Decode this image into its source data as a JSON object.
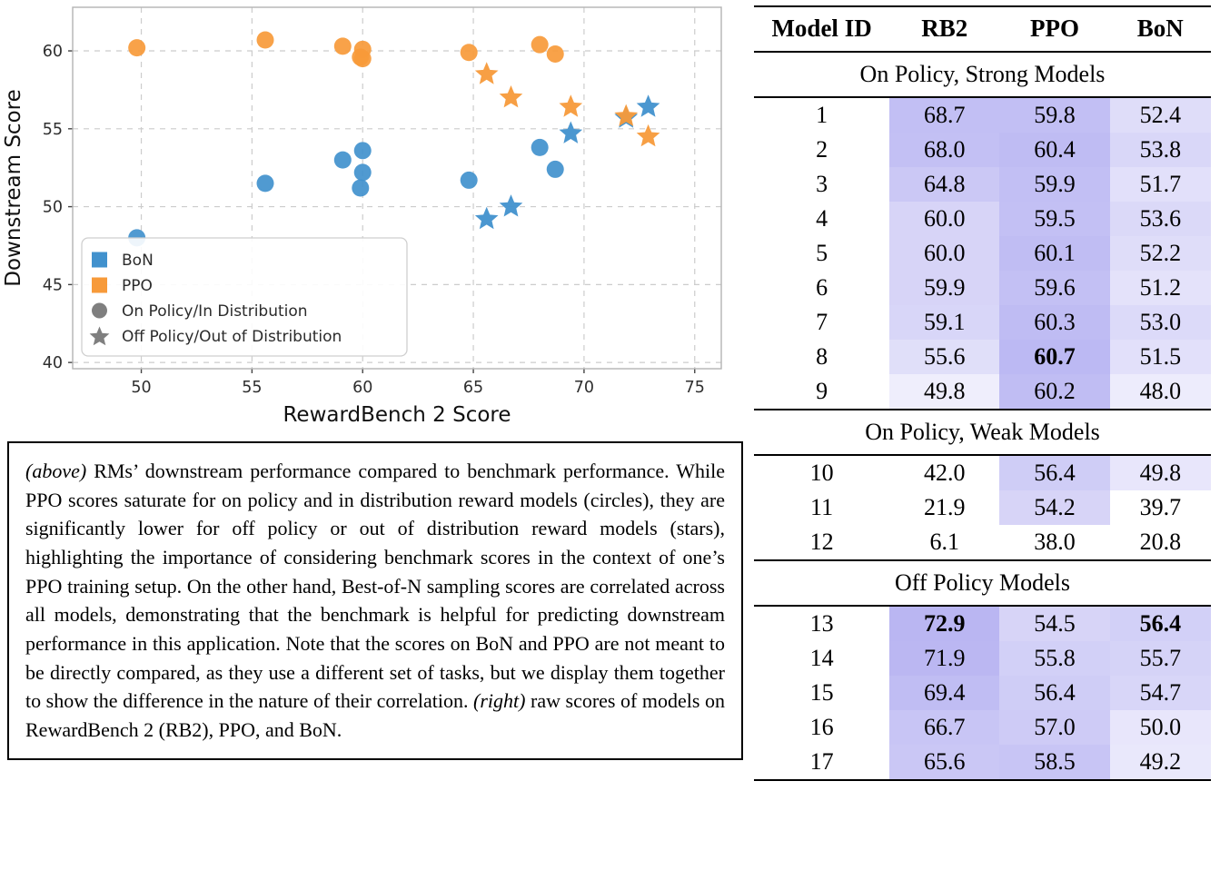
{
  "chart_data": {
    "type": "scatter",
    "title": "",
    "xlabel": "RewardBench 2 Score",
    "ylabel": "Downstream Score",
    "x_ticks": [
      50,
      55,
      60,
      65,
      70,
      75
    ],
    "y_ticks": [
      40,
      45,
      50,
      55,
      60
    ],
    "xlim": [
      46.9,
      76.2
    ],
    "ylim": [
      39.6,
      62.8
    ],
    "grid": "dashed",
    "legend_position": "lower left",
    "colors": {
      "bon": "#4191cd",
      "ppo": "#f79a3a",
      "gray": "#7f7f7f"
    },
    "legend": [
      {
        "label": "BoN",
        "marker": "square",
        "color_key": "bon"
      },
      {
        "label": "PPO",
        "marker": "square",
        "color_key": "ppo"
      },
      {
        "label": "On Policy/In Distribution",
        "marker": "circle",
        "color_key": "gray"
      },
      {
        "label": "Off Policy/Out of Distribution",
        "marker": "star",
        "color_key": "gray"
      }
    ],
    "series": [
      {
        "name": "PPO on-policy (circles)",
        "marker": "circle",
        "color_key": "ppo",
        "points": [
          [
            49.8,
            60.2
          ],
          [
            55.6,
            60.7
          ],
          [
            59.1,
            60.3
          ],
          [
            59.9,
            59.6
          ],
          [
            60.0,
            59.5
          ],
          [
            60.0,
            60.1
          ],
          [
            64.8,
            59.9
          ],
          [
            68.0,
            60.4
          ],
          [
            68.7,
            59.8
          ]
        ]
      },
      {
        "name": "BoN on-policy (circles)",
        "marker": "circle",
        "color_key": "bon",
        "points": [
          [
            49.8,
            48.0
          ],
          [
            55.6,
            51.5
          ],
          [
            59.1,
            53.0
          ],
          [
            59.9,
            51.2
          ],
          [
            60.0,
            53.6
          ],
          [
            60.0,
            52.2
          ],
          [
            64.8,
            51.7
          ],
          [
            68.0,
            53.8
          ],
          [
            68.7,
            52.4
          ]
        ]
      },
      {
        "name": "BoN off-policy (stars)",
        "marker": "star",
        "color_key": "bon",
        "points": [
          [
            65.6,
            49.2
          ],
          [
            66.7,
            50.0
          ],
          [
            69.4,
            54.7
          ],
          [
            71.9,
            55.7
          ],
          [
            72.9,
            56.4
          ]
        ]
      },
      {
        "name": "PPO off-policy (stars)",
        "marker": "star",
        "color_key": "ppo",
        "points": [
          [
            65.6,
            58.5
          ],
          [
            66.7,
            57.0
          ],
          [
            69.4,
            56.4
          ],
          [
            71.9,
            55.8
          ],
          [
            72.9,
            54.5
          ]
        ]
      }
    ]
  },
  "caption": {
    "parts": [
      {
        "italic": true,
        "text": "(above)"
      },
      {
        "italic": false,
        "text": " RMs’ downstream performance compared to benchmark performance. While PPO scores saturate for on policy and in distribution reward models (circles), they are significantly lower for off policy or out of distribution reward models (stars), highlighting the importance of considering benchmark scores in the context of one’s PPO training setup. On the other hand, Best-of-N sampling scores are correlated across all models, demonstrating that the benchmark is helpful for predicting downstream performance in this application. Note that the scores on BoN and PPO are not meant to be directly compared, as they use a different set of tasks, but we display them together to show the difference in the nature of their correlation. "
      },
      {
        "italic": true,
        "text": "(right)"
      },
      {
        "italic": false,
        "text": " raw scores of models on RewardBench 2 (RB2), PPO, and BoN."
      }
    ]
  },
  "table": {
    "headers": [
      "Model ID",
      "RB2",
      "PPO",
      "BoN"
    ],
    "shade_color": "110,102,228",
    "sections": [
      {
        "title": "On Policy, Strong Models",
        "rows": [
          {
            "id": "1",
            "values": [
              "68.7",
              "59.8",
              "52.4"
            ],
            "bold": [
              false,
              false,
              false
            ],
            "shades": [
              0.42,
              0.42,
              0.22
            ]
          },
          {
            "id": "2",
            "values": [
              "68.0",
              "60.4",
              "53.8"
            ],
            "bold": [
              false,
              false,
              false
            ],
            "shades": [
              0.41,
              0.44,
              0.26
            ]
          },
          {
            "id": "3",
            "values": [
              "64.8",
              "59.9",
              "51.7"
            ],
            "bold": [
              false,
              false,
              false
            ],
            "shades": [
              0.36,
              0.42,
              0.2
            ]
          },
          {
            "id": "4",
            "values": [
              "60.0",
              "59.5",
              "53.6"
            ],
            "bold": [
              false,
              false,
              false
            ],
            "shades": [
              0.28,
              0.41,
              0.25
            ]
          },
          {
            "id": "5",
            "values": [
              "60.0",
              "60.1",
              "52.2"
            ],
            "bold": [
              false,
              false,
              false
            ],
            "shades": [
              0.28,
              0.43,
              0.22
            ]
          },
          {
            "id": "6",
            "values": [
              "59.9",
              "59.6",
              "51.2"
            ],
            "bold": [
              false,
              false,
              false
            ],
            "shades": [
              0.28,
              0.41,
              0.19
            ]
          },
          {
            "id": "7",
            "values": [
              "59.1",
              "60.3",
              "53.0"
            ],
            "bold": [
              false,
              false,
              false
            ],
            "shades": [
              0.27,
              0.44,
              0.24
            ]
          },
          {
            "id": "8",
            "values": [
              "55.6",
              "60.7",
              "51.5"
            ],
            "bold": [
              false,
              true,
              false
            ],
            "shades": [
              0.21,
              0.46,
              0.2
            ]
          },
          {
            "id": "9",
            "values": [
              "49.8",
              "60.2",
              "48.0"
            ],
            "bold": [
              false,
              false,
              false
            ],
            "shades": [
              0.11,
              0.43,
              0.12
            ]
          }
        ]
      },
      {
        "title": "On Policy, Weak Models",
        "rows": [
          {
            "id": "10",
            "values": [
              "42.0",
              "56.4",
              "49.8"
            ],
            "bold": [
              false,
              false,
              false
            ],
            "shades": [
              0.0,
              0.33,
              0.16
            ]
          },
          {
            "id": "11",
            "values": [
              "21.9",
              "54.2",
              "39.7"
            ],
            "bold": [
              false,
              false,
              false
            ],
            "shades": [
              0.0,
              0.28,
              0.0
            ]
          },
          {
            "id": "12",
            "values": [
              "6.1",
              "38.0",
              "20.8"
            ],
            "bold": [
              false,
              false,
              false
            ],
            "shades": [
              0.0,
              0.0,
              0.0
            ]
          }
        ]
      },
      {
        "title": "Off Policy Models",
        "rows": [
          {
            "id": "13",
            "values": [
              "72.9",
              "54.5",
              "56.4"
            ],
            "bold": [
              true,
              false,
              true
            ],
            "shades": [
              0.48,
              0.28,
              0.31
            ]
          },
          {
            "id": "14",
            "values": [
              "71.9",
              "55.8",
              "55.7"
            ],
            "bold": [
              false,
              false,
              false
            ],
            "shades": [
              0.47,
              0.31,
              0.29
            ]
          },
          {
            "id": "15",
            "values": [
              "69.4",
              "56.4",
              "54.7"
            ],
            "bold": [
              false,
              false,
              false
            ],
            "shades": [
              0.43,
              0.33,
              0.27
            ]
          },
          {
            "id": "16",
            "values": [
              "66.7",
              "57.0",
              "50.0"
            ],
            "bold": [
              false,
              false,
              false
            ],
            "shades": [
              0.38,
              0.34,
              0.16
            ]
          },
          {
            "id": "17",
            "values": [
              "65.6",
              "58.5",
              "49.2"
            ],
            "bold": [
              false,
              false,
              false
            ],
            "shades": [
              0.37,
              0.38,
              0.15
            ]
          }
        ]
      }
    ]
  }
}
